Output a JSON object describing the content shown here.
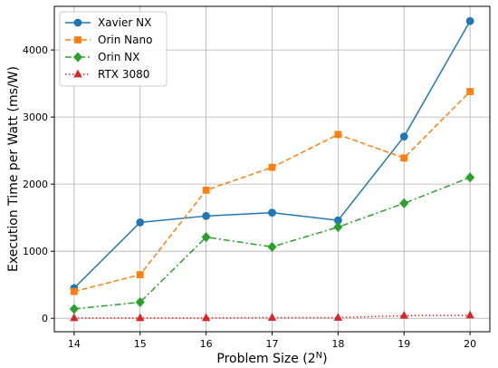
{
  "chart_data": {
    "type": "line",
    "title": "",
    "xlabel": "Problem Size (2",
    "xlabel_sup": "N",
    "xlabel_suffix": ")",
    "ylabel": "Execution Time per Watt (ms/W)",
    "x": [
      14,
      15,
      16,
      17,
      18,
      19,
      20
    ],
    "x_ticks": [
      "14",
      "15",
      "16",
      "17",
      "18",
      "19",
      "20"
    ],
    "y_ticks": [
      0,
      1000,
      2000,
      3000,
      4000
    ],
    "y_tick_labels": [
      "0",
      "1000",
      "2000",
      "3000",
      "4000"
    ],
    "xlim": [
      13.7,
      20.3
    ],
    "ylim": [
      -200,
      4650
    ],
    "grid": true,
    "legend_position": "top-left",
    "series": [
      {
        "name": "Xavier NX",
        "color": "#1f77b4",
        "dash": "solid",
        "marker": "circle",
        "values": [
          450,
          1430,
          1525,
          1575,
          1460,
          2710,
          4430
        ]
      },
      {
        "name": "Orin Nano",
        "color": "#ff7f0e",
        "dash": "dashed",
        "marker": "square",
        "values": [
          400,
          650,
          1910,
          2250,
          2740,
          2390,
          3380
        ]
      },
      {
        "name": "Orin NX",
        "color": "#2ca02c",
        "dash": "dashdot",
        "marker": "diamond",
        "values": [
          140,
          240,
          1210,
          1065,
          1360,
          1715,
          2100
        ]
      },
      {
        "name": "RTX 3080",
        "color": "#d62728",
        "dash": "dotted",
        "marker": "triangle",
        "values": [
          5,
          5,
          5,
          10,
          10,
          40,
          45
        ]
      }
    ]
  }
}
